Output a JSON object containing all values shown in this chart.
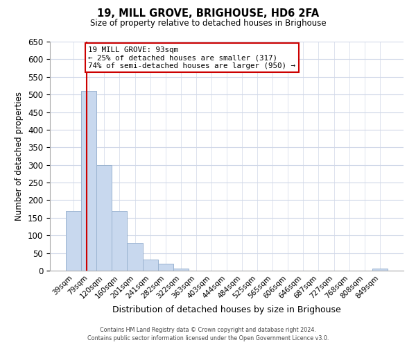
{
  "title": "19, MILL GROVE, BRIGHOUSE, HD6 2FA",
  "subtitle": "Size of property relative to detached houses in Brighouse",
  "xlabel": "Distribution of detached houses by size in Brighouse",
  "ylabel": "Number of detached properties",
  "bar_labels": [
    "39sqm",
    "79sqm",
    "120sqm",
    "160sqm",
    "201sqm",
    "241sqm",
    "282sqm",
    "322sqm",
    "363sqm",
    "403sqm",
    "444sqm",
    "484sqm",
    "525sqm",
    "565sqm",
    "606sqm",
    "646sqm",
    "687sqm",
    "727sqm",
    "768sqm",
    "808sqm",
    "849sqm"
  ],
  "bar_values": [
    170,
    510,
    300,
    170,
    78,
    32,
    20,
    5,
    0,
    0,
    0,
    0,
    0,
    0,
    0,
    0,
    0,
    0,
    0,
    0,
    5
  ],
  "bar_color": "#c8d8ee",
  "bar_edge_color": "#9ab3d0",
  "ylim": [
    0,
    650
  ],
  "yticks": [
    0,
    50,
    100,
    150,
    200,
    250,
    300,
    350,
    400,
    450,
    500,
    550,
    600,
    650
  ],
  "property_line_color": "#cc0000",
  "annotation_title": "19 MILL GROVE: 93sqm",
  "annotation_line1": "← 25% of detached houses are smaller (317)",
  "annotation_line2": "74% of semi-detached houses are larger (950) →",
  "annotation_box_color": "#ffffff",
  "annotation_box_edge": "#cc0000",
  "footer_line1": "Contains HM Land Registry data © Crown copyright and database right 2024.",
  "footer_line2": "Contains public sector information licensed under the Open Government Licence v3.0.",
  "background_color": "#ffffff",
  "grid_color": "#d0d8e8"
}
